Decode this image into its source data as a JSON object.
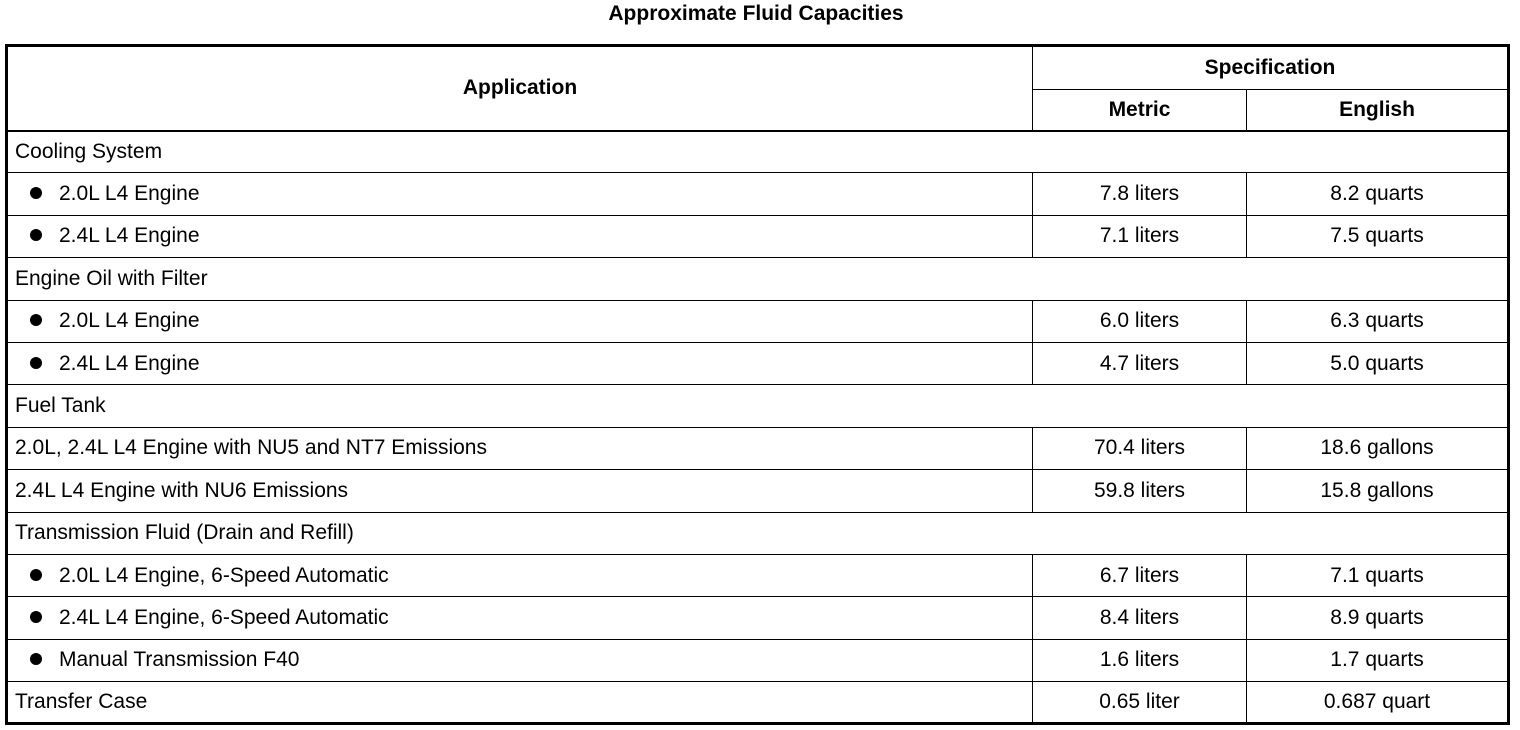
{
  "title": "Approximate Fluid Capacities",
  "headers": {
    "application": "Application",
    "specification": "Specification",
    "metric": "Metric",
    "english": "English"
  },
  "rows": [
    {
      "type": "group",
      "label": "Cooling System"
    },
    {
      "type": "bullet",
      "label": "2.0L L4 Engine",
      "metric": "7.8 liters",
      "english": "8.2 quarts"
    },
    {
      "type": "bullet",
      "label": "2.4L L4 Engine",
      "metric": "7.1 liters",
      "english": "7.5 quarts"
    },
    {
      "type": "group",
      "label": "Engine Oil with Filter"
    },
    {
      "type": "bullet",
      "label": "2.0L L4 Engine",
      "metric": "6.0 liters",
      "english": "6.3 quarts"
    },
    {
      "type": "bullet",
      "label": "2.4L L4 Engine",
      "metric": "4.7 liters",
      "english": "5.0 quarts"
    },
    {
      "type": "group",
      "label": "Fuel Tank"
    },
    {
      "type": "plain",
      "label": "2.0L, 2.4L L4 Engine with NU5 and NT7 Emissions",
      "metric": "70.4 liters",
      "english": "18.6 gallons"
    },
    {
      "type": "plain",
      "label": "2.4L L4 Engine with NU6 Emissions",
      "metric": "59.8 liters",
      "english": "15.8 gallons"
    },
    {
      "type": "group",
      "label": "Transmission Fluid (Drain and Refill)"
    },
    {
      "type": "bullet",
      "label": "2.0L L4 Engine, 6-Speed Automatic",
      "metric": "6.7 liters",
      "english": "7.1 quarts"
    },
    {
      "type": "bullet",
      "label": "2.4L L4 Engine, 6-Speed Automatic",
      "metric": "8.4 liters",
      "english": "8.9 quarts"
    },
    {
      "type": "bullet",
      "label": "Manual Transmission F40",
      "metric": "1.6 liters",
      "english": "1.7 quarts"
    },
    {
      "type": "plain",
      "label": "Transfer Case",
      "metric": "0.65 liter",
      "english": "0.687 quart"
    }
  ]
}
